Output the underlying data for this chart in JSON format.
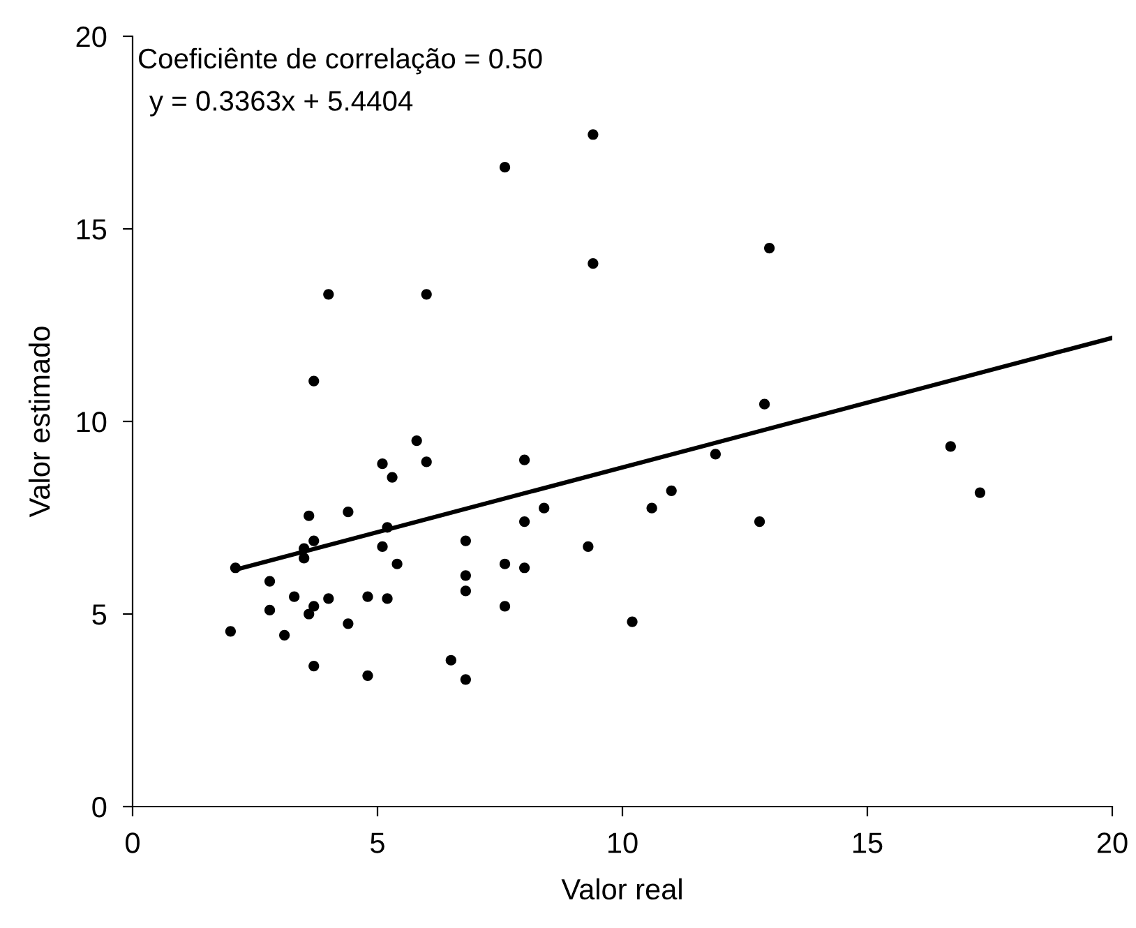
{
  "chart_data": {
    "type": "scatter",
    "xlabel": "Valor real",
    "ylabel": "Valor estimado",
    "annotations": [
      "Coeficiênte de correlação = 0.50",
      "y = 0.3363x + 5.4404"
    ],
    "xlim": [
      0,
      20
    ],
    "ylim": [
      0,
      20
    ],
    "xticks": [
      0,
      5,
      10,
      15,
      20
    ],
    "yticks": [
      0,
      5,
      10,
      15,
      20
    ],
    "grid": false,
    "marker": "circle",
    "series": [
      {
        "color": "#000000",
        "x": [
          2.0,
          2.1,
          2.8,
          2.8,
          3.1,
          3.3,
          3.5,
          3.5,
          3.6,
          3.6,
          3.7,
          3.7,
          3.7,
          3.7,
          4.0,
          4.0,
          4.4,
          4.4,
          4.8,
          4.8,
          5.1,
          5.1,
          5.2,
          5.2,
          5.3,
          5.4,
          5.8,
          6.0,
          6.0,
          6.5,
          6.8,
          6.8,
          6.8,
          6.8,
          7.6,
          7.6,
          7.6,
          8.0,
          8.0,
          8.0,
          8.4,
          9.3,
          9.4,
          9.4,
          10.2,
          10.6,
          11.0,
          11.9,
          12.8,
          12.9,
          13.0,
          16.7,
          17.3
        ],
        "values": [
          4.55,
          6.2,
          5.85,
          5.1,
          4.45,
          5.45,
          6.7,
          6.45,
          7.55,
          5.0,
          5.2,
          6.9,
          3.65,
          11.05,
          5.4,
          13.3,
          7.65,
          4.75,
          5.45,
          3.4,
          8.9,
          6.75,
          7.25,
          5.4,
          8.55,
          6.3,
          9.5,
          8.95,
          13.3,
          3.8,
          6.9,
          6.0,
          5.6,
          3.3,
          16.6,
          6.3,
          5.2,
          9.0,
          7.4,
          6.2,
          7.75,
          6.75,
          17.45,
          14.1,
          4.8,
          7.75,
          8.2,
          9.15,
          7.4,
          10.45,
          14.5,
          9.35,
          8.15
        ]
      },
      {
        "type": "line",
        "color": "#000000",
        "marker": "none",
        "line_style": "solid",
        "x": [
          2.1,
          20
        ],
        "values": [
          6.15,
          12.17
        ]
      }
    ]
  }
}
